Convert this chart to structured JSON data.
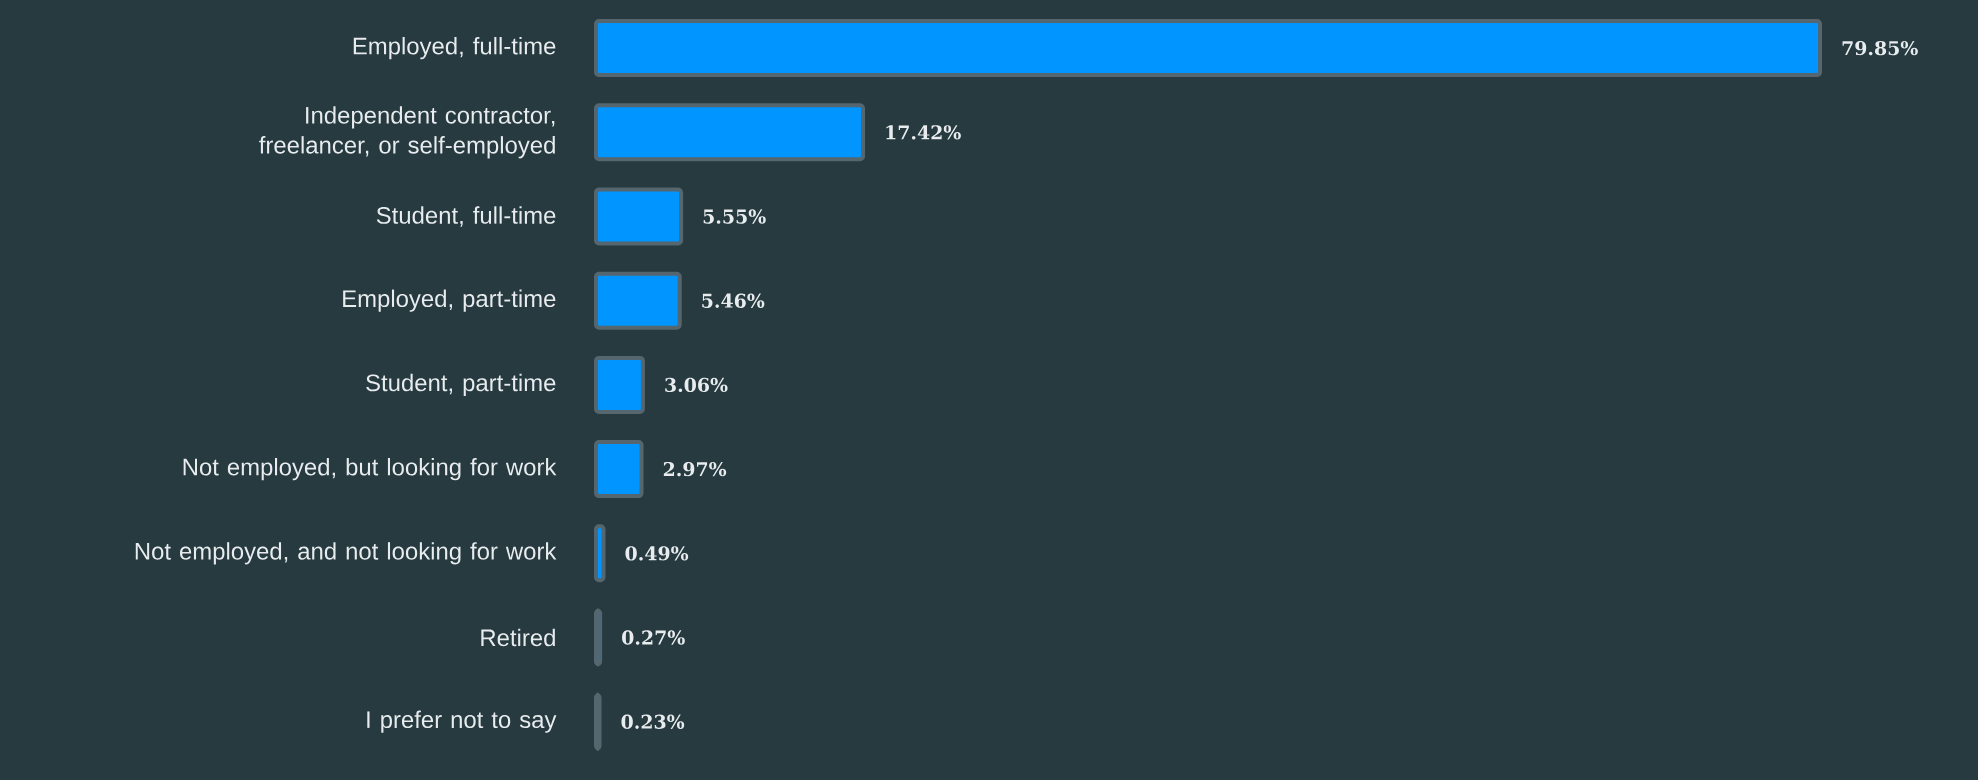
{
  "chart_data": {
    "type": "bar",
    "orientation": "horizontal",
    "color": "#0095ff",
    "categories": [
      "Employed, full-time",
      "Independent contractor, freelancer, or self-employed",
      "Student, full-time",
      "Employed, part-time",
      "Student, part-time",
      "Not employed, but looking for work",
      "Not employed, and not looking for work",
      "Retired",
      "I prefer not to say"
    ],
    "values": [
      79.85,
      17.42,
      5.55,
      5.46,
      3.06,
      2.97,
      0.49,
      0.27,
      0.23
    ],
    "value_labels": [
      "79.85%",
      "17.42%",
      "5.55%",
      "5.46%",
      "3.06%",
      "2.97%",
      "0.49%",
      "0.27%",
      "0.23%"
    ]
  }
}
